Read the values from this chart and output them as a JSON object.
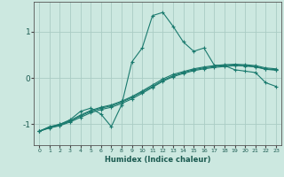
{
  "xlabel": "Humidex (Indice chaleur)",
  "ylabel": "",
  "xlim": [
    -0.5,
    23.5
  ],
  "ylim": [
    -1.45,
    1.65
  ],
  "yticks": [
    -1,
    0,
    1
  ],
  "xticks": [
    0,
    1,
    2,
    3,
    4,
    5,
    6,
    7,
    8,
    9,
    10,
    11,
    12,
    13,
    14,
    15,
    16,
    17,
    18,
    19,
    20,
    21,
    22,
    23
  ],
  "background_color": "#cce8e0",
  "grid_color": "#aaccC4",
  "line_color": "#1a7a6e",
  "lines": [
    {
      "x": [
        0,
        1,
        2,
        3,
        4,
        5,
        6,
        7,
        8,
        9,
        10,
        11,
        12,
        13,
        14,
        15,
        16,
        17,
        18,
        19,
        20,
        21,
        22,
        23
      ],
      "y": [
        -1.15,
        -1.05,
        -1.0,
        -0.9,
        -0.72,
        -0.65,
        -0.78,
        -1.05,
        -0.58,
        0.35,
        0.65,
        1.35,
        1.42,
        1.12,
        0.78,
        0.58,
        0.65,
        0.28,
        0.27,
        0.18,
        0.15,
        0.12,
        -0.1,
        -0.18
      ]
    },
    {
      "x": [
        0,
        1,
        2,
        3,
        4,
        5,
        6,
        7,
        8,
        9,
        10,
        11,
        12,
        13,
        14,
        15,
        16,
        17,
        18,
        19,
        20,
        21,
        22,
        23
      ],
      "y": [
        -1.15,
        -1.07,
        -1.02,
        -0.93,
        -0.82,
        -0.72,
        -0.65,
        -0.6,
        -0.52,
        -0.42,
        -0.3,
        -0.18,
        -0.05,
        0.05,
        0.12,
        0.18,
        0.22,
        0.25,
        0.27,
        0.28,
        0.27,
        0.25,
        0.2,
        0.18
      ]
    },
    {
      "x": [
        0,
        1,
        2,
        3,
        4,
        5,
        6,
        7,
        8,
        9,
        10,
        11,
        12,
        13,
        14,
        15,
        16,
        17,
        18,
        19,
        20,
        21,
        22,
        23
      ],
      "y": [
        -1.15,
        -1.08,
        -1.03,
        -0.95,
        -0.85,
        -0.75,
        -0.68,
        -0.63,
        -0.55,
        -0.45,
        -0.33,
        -0.2,
        -0.07,
        0.03,
        0.1,
        0.16,
        0.2,
        0.23,
        0.25,
        0.27,
        0.26,
        0.24,
        0.19,
        0.17
      ]
    },
    {
      "x": [
        0,
        1,
        2,
        3,
        4,
        5,
        6,
        7,
        8,
        9,
        10,
        11,
        12,
        13,
        14,
        15,
        16,
        17,
        18,
        19,
        20,
        21,
        22,
        23
      ],
      "y": [
        -1.15,
        -1.06,
        -1.0,
        -0.92,
        -0.8,
        -0.7,
        -0.63,
        -0.58,
        -0.5,
        -0.4,
        -0.28,
        -0.15,
        -0.02,
        0.08,
        0.14,
        0.2,
        0.24,
        0.27,
        0.29,
        0.3,
        0.29,
        0.27,
        0.22,
        0.2
      ]
    }
  ]
}
